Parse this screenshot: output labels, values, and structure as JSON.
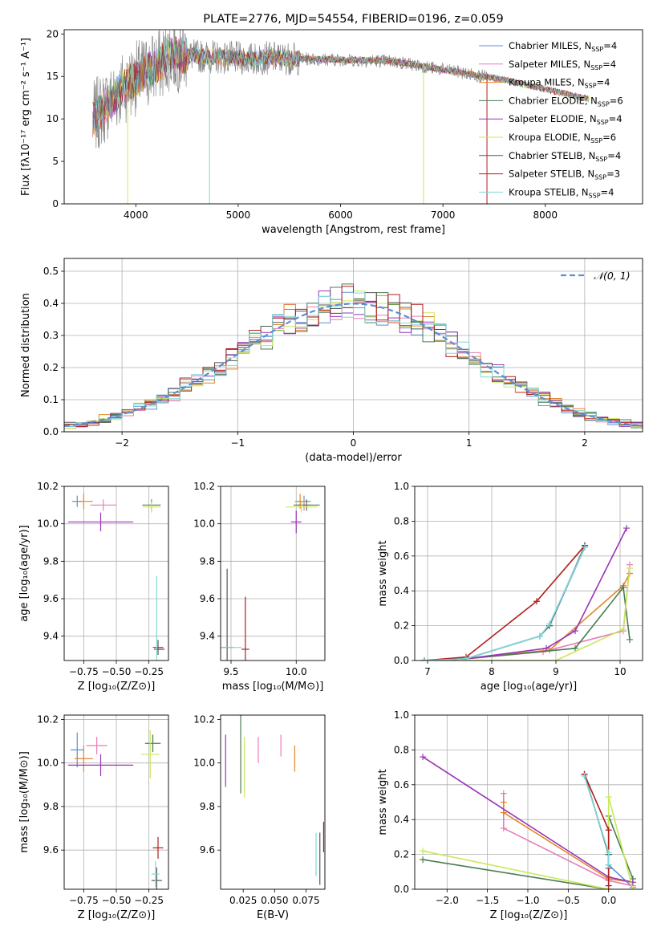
{
  "chart_data": [
    {
      "id": "spectrum",
      "type": "line",
      "title": "PLATE=2776, MJD=54554, FIBERID=0196, z=0.059",
      "xlabel": "wavelength [Angstrom, rest frame]",
      "ylabel": "Flux [fλ10⁻¹⁷ erg cm⁻² s⁻¹ A⁻¹]",
      "xlim": [
        3300,
        8950
      ],
      "ylim": [
        0,
        20.5
      ],
      "xticks": [
        4000,
        5000,
        6000,
        7000,
        8000
      ],
      "yticks": [
        0,
        5,
        10,
        15,
        20
      ],
      "legend_loc": "upper-right",
      "series": [
        {
          "name": "Chabrier MILES, N",
          "sub": "SSP",
          "tail": "=4",
          "color": "#5b8fd6"
        },
        {
          "name": "Salpeter MILES, N",
          "sub": "SSP",
          "tail": "=4",
          "color": "#e87db8"
        },
        {
          "name": "Kroupa MILES, N",
          "sub": "SSP",
          "tail": "=4",
          "color": "#e3862a"
        },
        {
          "name": "Chabrier ELODIE, N",
          "sub": "SSP",
          "tail": "=6",
          "color": "#4a7d50"
        },
        {
          "name": "Salpeter ELODIE, N",
          "sub": "SSP",
          "tail": "=4",
          "color": "#9a35b5"
        },
        {
          "name": "Kroupa ELODIE, N",
          "sub": "SSP",
          "tail": "=6",
          "color": "#c9e85a"
        },
        {
          "name": "Chabrier STELIB, N",
          "sub": "SSP",
          "tail": "=4",
          "color": "#555555"
        },
        {
          "name": "Salpeter STELIB, N",
          "sub": "SSP",
          "tail": "=3",
          "color": "#b01e1e"
        },
        {
          "name": "Kroupa STELIB, N",
          "sub": "SSP",
          "tail": "=4",
          "color": "#7fd8d8"
        }
      ]
    },
    {
      "id": "residuals",
      "type": "line",
      "xlabel": "(data-model)/error",
      "ylabel": "Normed distribution",
      "xlim": [
        -2.5,
        2.5
      ],
      "ylim": [
        0,
        0.54
      ],
      "xticks": [
        -2,
        -1,
        0,
        1,
        2
      ],
      "yticks": [
        0.0,
        0.1,
        0.2,
        0.3,
        0.4,
        0.5
      ],
      "grid": true,
      "legend_loc": "upper-right",
      "normal_label": "𝒩(0, 1)",
      "normal_color": "#5b8fd6"
    },
    {
      "id": "age-Z",
      "type": "scatter",
      "xlabel": "Z [log₁₀(Z/Z⊙)]",
      "ylabel": "age  [log₁₀(age/yr)]",
      "xlim": [
        -0.9,
        -0.1
      ],
      "ylim": [
        9.27,
        10.2
      ],
      "xticks": [
        -0.75,
        -0.5,
        -0.25
      ],
      "xticklabels": [
        "−0.75",
        "−0.50",
        "−0.25"
      ],
      "yticks": [
        9.4,
        9.6,
        9.8,
        10.0,
        10.2
      ],
      "grid": true,
      "points": [
        {
          "x": -0.8,
          "y": 10.12,
          "ex": 0.04,
          "ey": 0.03,
          "c": "#5b8fd6"
        },
        {
          "x": -0.6,
          "y": 10.1,
          "ex": 0.1,
          "ey": 0.03,
          "c": "#e87db8"
        },
        {
          "x": -0.75,
          "y": 10.12,
          "ex": 0.07,
          "ey": 0.04,
          "c": "#e3862a"
        },
        {
          "x": -0.23,
          "y": 10.1,
          "ex": 0.07,
          "ey": 0.03,
          "c": "#4a7d50"
        },
        {
          "x": -0.62,
          "y": 10.01,
          "ex": 0.25,
          "ey": 0.05,
          "c": "#9a35b5"
        },
        {
          "x": -0.23,
          "y": 10.09,
          "ex": 0.07,
          "ey": 0.03,
          "c": "#c9e85a"
        },
        {
          "x": -0.18,
          "y": 9.34,
          "ex": 0.04,
          "ey": 0.04,
          "c": "#555555"
        },
        {
          "x": -0.17,
          "y": 9.33,
          "ex": 0.04,
          "ey": 0.0,
          "c": "#b01e1e"
        },
        {
          "x": -0.19,
          "y": 9.36,
          "ex": 0.0,
          "ey": 0.36,
          "c": "#7fd8d8"
        }
      ]
    },
    {
      "id": "age-mass",
      "type": "scatter",
      "xlabel": "mass [log₁₀(M/M⊙)]",
      "xlim": [
        9.42,
        10.22
      ],
      "ylim": [
        9.27,
        10.2
      ],
      "xticks": [
        9.5,
        10.0
      ],
      "yticks": [
        9.4,
        9.6,
        9.8,
        10.0,
        10.2
      ],
      "grid": true,
      "points": [
        {
          "x": 10.06,
          "y": 10.12,
          "ex": 0.05,
          "ey": 0.03,
          "c": "#5b8fd6"
        },
        {
          "x": 10.06,
          "y": 10.1,
          "ex": 0.05,
          "ey": 0.03,
          "c": "#e87db8"
        },
        {
          "x": 10.03,
          "y": 10.12,
          "ex": 0.04,
          "ey": 0.04,
          "c": "#e3862a"
        },
        {
          "x": 10.08,
          "y": 10.1,
          "ex": 0.1,
          "ey": 0.03,
          "c": "#4a7d50"
        },
        {
          "x": 10.0,
          "y": 10.01,
          "ex": 0.04,
          "ey": 0.06,
          "c": "#9a35b5"
        },
        {
          "x": 10.04,
          "y": 10.09,
          "ex": 0.12,
          "ey": 0.03,
          "c": "#c9e85a"
        },
        {
          "x": 9.47,
          "y": 9.34,
          "ex": 0.05,
          "ey": 0.42,
          "c": "#555555"
        },
        {
          "x": 9.61,
          "y": 9.33,
          "ex": 0.03,
          "ey": 0.28,
          "c": "#b01e1e"
        },
        {
          "x": 9.5,
          "y": 9.34,
          "ex": 0.08,
          "ey": 0.0,
          "c": "#7fd8d8"
        }
      ]
    },
    {
      "id": "weight-age",
      "type": "line",
      "xlabel": "age  [log₁₀(age/yr)]",
      "ylabel": "mass weight",
      "xlim": [
        6.8,
        10.35
      ],
      "ylim": [
        0,
        1.0
      ],
      "xticks": [
        7,
        8,
        9,
        10
      ],
      "yticks": [
        0.0,
        0.2,
        0.4,
        0.6,
        0.8,
        1.0
      ],
      "grid": true,
      "series": [
        {
          "c": "#5b8fd6",
          "x": [
            6.95,
            7.6,
            8.75,
            8.9,
            9.45
          ],
          "y": [
            0.0,
            0.01,
            0.14,
            0.2,
            0.65
          ]
        },
        {
          "c": "#e87db8",
          "x": [
            6.95,
            7.6,
            8.8,
            10.05,
            10.15
          ],
          "y": [
            0.0,
            0.01,
            0.05,
            0.17,
            0.55
          ]
        },
        {
          "c": "#e3862a",
          "x": [
            6.95,
            7.6,
            8.9,
            10.05,
            10.15
          ],
          "y": [
            0.0,
            0.01,
            0.06,
            0.43,
            0.5
          ]
        },
        {
          "c": "#4a7d50",
          "x": [
            6.95,
            7.6,
            9.3,
            10.05,
            10.15
          ],
          "y": [
            0.0,
            0.01,
            0.07,
            0.42,
            0.12
          ]
        },
        {
          "c": "#9a35b5",
          "x": [
            6.95,
            7.6,
            8.85,
            9.3,
            10.1
          ],
          "y": [
            0.0,
            0.01,
            0.07,
            0.17,
            0.76
          ]
        },
        {
          "c": "#c9e85a",
          "x": [
            6.95,
            7.6,
            9.0,
            10.05,
            10.15
          ],
          "y": [
            0.0,
            0.0,
            0.0,
            0.18,
            0.53
          ]
        },
        {
          "c": "#555555",
          "x": [
            6.95,
            7.6,
            8.75,
            8.9,
            9.45
          ],
          "y": [
            0.0,
            0.01,
            0.14,
            0.2,
            0.66
          ]
        },
        {
          "c": "#b01e1e",
          "x": [
            6.95,
            7.6,
            8.7,
            9.45
          ],
          "y": [
            0.0,
            0.02,
            0.34,
            0.66
          ]
        },
        {
          "c": "#7fd8d8",
          "x": [
            6.95,
            7.6,
            8.75,
            8.9,
            9.45
          ],
          "y": [
            0.0,
            0.01,
            0.14,
            0.21,
            0.65
          ]
        }
      ]
    },
    {
      "id": "mass-Z",
      "type": "scatter",
      "xlabel": "Z [log₁₀(Z/Z⊙)]",
      "ylabel": "mass [log₁₀(M/M⊙)]",
      "xlim": [
        -0.9,
        -0.1
      ],
      "ylim": [
        9.42,
        10.22
      ],
      "xticks": [
        -0.75,
        -0.5,
        -0.25
      ],
      "xticklabels": [
        "−0.75",
        "−0.50",
        "−0.25"
      ],
      "yticks": [
        9.6,
        9.8,
        10.0,
        10.2
      ],
      "grid": true,
      "points": [
        {
          "x": -0.8,
          "y": 10.06,
          "ex": 0.05,
          "ey": 0.08,
          "c": "#5b8fd6"
        },
        {
          "x": -0.65,
          "y": 10.08,
          "ex": 0.08,
          "ey": 0.04,
          "c": "#e87db8"
        },
        {
          "x": -0.75,
          "y": 10.02,
          "ex": 0.07,
          "ey": 0.06,
          "c": "#e3862a"
        },
        {
          "x": -0.22,
          "y": 10.09,
          "ex": 0.06,
          "ey": 0.04,
          "c": "#4a7d50"
        },
        {
          "x": -0.62,
          "y": 9.99,
          "ex": 0.25,
          "ey": 0.05,
          "c": "#9a35b5"
        },
        {
          "x": -0.24,
          "y": 10.04,
          "ex": 0.07,
          "ey": 0.11,
          "c": "#c9e85a"
        },
        {
          "x": -0.19,
          "y": 9.46,
          "ex": 0.04,
          "ey": 0.06,
          "c": "#555555"
        },
        {
          "x": -0.18,
          "y": 9.61,
          "ex": 0.04,
          "ey": 0.05,
          "c": "#b01e1e"
        },
        {
          "x": -0.2,
          "y": 9.49,
          "ex": 0.03,
          "ey": 0.06,
          "c": "#7fd8d8"
        }
      ]
    },
    {
      "id": "mass-EBV",
      "type": "scatter",
      "xlabel": "E(B-V)",
      "xlim": [
        0.007,
        0.09
      ],
      "ylim": [
        9.42,
        10.22
      ],
      "xticks": [
        0.025,
        0.05,
        0.075
      ],
      "xticklabels": [
        "0.025",
        "0.050",
        "0.075"
      ],
      "yticks": [
        9.6,
        9.8,
        10.0,
        10.2
      ],
      "points": [
        {
          "x": 0.055,
          "y": 10.08,
          "ex": 0,
          "ey": 0.05,
          "c": "#e87db8"
        },
        {
          "x": 0.066,
          "y": 10.02,
          "ex": 0,
          "ey": 0.06,
          "c": "#e3862a"
        },
        {
          "x": 0.023,
          "y": 10.04,
          "ex": 0,
          "ey": 0.18,
          "c": "#4a7d50"
        },
        {
          "x": 0.011,
          "y": 10.01,
          "ex": 0,
          "ey": 0.12,
          "c": "#9a35b5"
        },
        {
          "x": 0.026,
          "y": 9.98,
          "ex": 0,
          "ey": 0.14,
          "c": "#c9e85a"
        },
        {
          "x": 0.037,
          "y": 10.06,
          "ex": 0,
          "ey": 0.06,
          "c": "#e87db8"
        },
        {
          "x": 0.086,
          "y": 9.56,
          "ex": 0,
          "ey": 0.12,
          "c": "#555555"
        },
        {
          "x": 0.089,
          "y": 9.66,
          "ex": 0,
          "ey": 0.07,
          "c": "#b01e1e"
        },
        {
          "x": 0.083,
          "y": 9.58,
          "ex": 0,
          "ey": 0.1,
          "c": "#7fd8d8"
        }
      ]
    },
    {
      "id": "weight-Z",
      "type": "line",
      "xlabel": "Z [log₁₀(Z/Z⊙)]",
      "ylabel": "mass weight",
      "xlim": [
        -2.4,
        0.42
      ],
      "ylim": [
        0,
        1.0
      ],
      "xticks": [
        -2.0,
        -1.5,
        -1.0,
        -0.5,
        0.0
      ],
      "xticklabels": [
        "−2.0",
        "−1.5",
        "−1.0",
        "−0.5",
        "0.0"
      ],
      "yticks": [
        0.0,
        0.2,
        0.4,
        0.6,
        0.8,
        1.0
      ],
      "grid": true,
      "series": [
        {
          "c": "#5b8fd6",
          "x": [
            -0.3,
            0.0,
            0.0,
            0.3
          ],
          "y": [
            0.66,
            0.2,
            0.14,
            0.01
          ]
        },
        {
          "c": "#e87db8",
          "x": [
            -1.3,
            -1.3,
            0.0,
            0.3
          ],
          "y": [
            0.55,
            0.35,
            0.05,
            0.02
          ]
        },
        {
          "c": "#e3862a",
          "x": [
            -1.3,
            -1.3,
            0.0,
            0.3
          ],
          "y": [
            0.5,
            0.44,
            0.06,
            0.04
          ]
        },
        {
          "c": "#4a7d50",
          "x": [
            -2.3,
            0.0,
            0.0,
            0.3
          ],
          "y": [
            0.17,
            0.0,
            0.42,
            0.06
          ]
        },
        {
          "c": "#9a35b5",
          "x": [
            -2.3,
            0.0,
            0.3
          ],
          "y": [
            0.76,
            0.07,
            0.04
          ]
        },
        {
          "c": "#c9e85a",
          "x": [
            -2.3,
            0.0,
            0.0,
            0.3
          ],
          "y": [
            0.22,
            0.0,
            0.53,
            0.0
          ]
        },
        {
          "c": "#555555",
          "x": [
            -0.3,
            0.0,
            0.0
          ],
          "y": [
            0.66,
            0.2,
            0.12
          ]
        },
        {
          "c": "#b01e1e",
          "x": [
            -0.3,
            0.0,
            0.0
          ],
          "y": [
            0.66,
            0.34,
            0.02
          ]
        },
        {
          "c": "#7fd8d8",
          "x": [
            -0.3,
            0.0,
            0.0
          ],
          "y": [
            0.65,
            0.21,
            0.14
          ]
        }
      ]
    }
  ]
}
